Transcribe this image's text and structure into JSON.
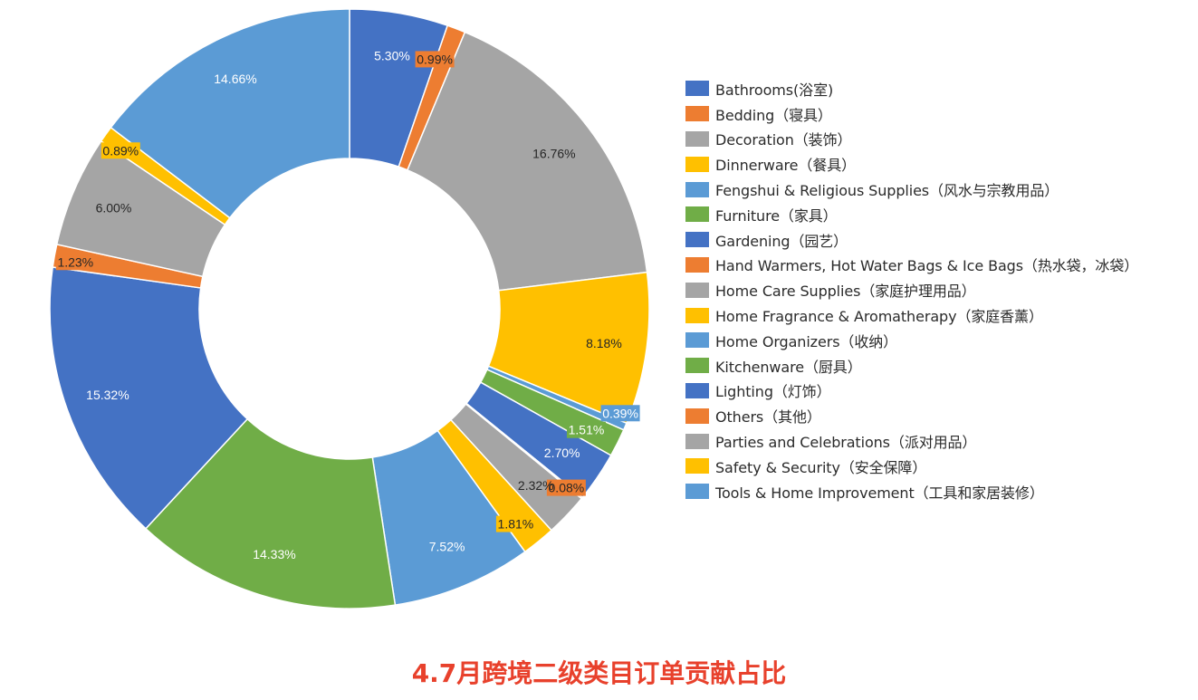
{
  "chart_data": {
    "type": "doughnut",
    "title": "4.7月跨境二级类目订单贡献占比",
    "legend_position": "right",
    "series": [
      {
        "name": "Bathrooms(浴室)",
        "value": 5.3,
        "label": "5.30%",
        "color": "#4472C4",
        "label_style": "plain"
      },
      {
        "name": "Bedding（寝具）",
        "value": 0.99,
        "label": "0.99%",
        "color": "#ED7D31",
        "label_style": "boxed"
      },
      {
        "name": "Decoration（装饰）",
        "value": 16.76,
        "label": "16.76%",
        "color": "#A5A5A5",
        "label_style": "plain"
      },
      {
        "name": "Dinnerware（餐具）",
        "value": 8.18,
        "label": "8.18%",
        "color": "#FFC000",
        "label_style": "plain"
      },
      {
        "name": "Fengshui & Religious Supplies（风水与宗教用品）",
        "value": 0.39,
        "label": "0.39%",
        "color": "#5B9BD5",
        "label_style": "boxed"
      },
      {
        "name": "Furniture（家具）",
        "value": 1.51,
        "label": "1.51%",
        "color": "#70AD47",
        "label_style": "boxed"
      },
      {
        "name": "Gardening（园艺）",
        "value": 2.7,
        "label": "2.70%",
        "color": "#4472C4",
        "label_style": "plain"
      },
      {
        "name": "Hand Warmers, Hot Water Bags & Ice Bags（热水袋，冰袋）",
        "value": 0.08,
        "label": "0.08%",
        "color": "#ED7D31",
        "label_style": "boxed"
      },
      {
        "name": "Home Care Supplies（家庭护理用品）",
        "value": 2.32,
        "label": "2.32%",
        "color": "#A5A5A5",
        "label_style": "plain"
      },
      {
        "name": "Home Fragrance & Aromatherapy（家庭香薰）",
        "value": 1.81,
        "label": "1.81%",
        "color": "#FFC000",
        "label_style": "boxed"
      },
      {
        "name": "Home Organizers（收纳）",
        "value": 7.52,
        "label": "7.52%",
        "color": "#5B9BD5",
        "label_style": "plain"
      },
      {
        "name": "Kitchenware（厨具）",
        "value": 14.33,
        "label": "14.33%",
        "color": "#70AD47",
        "label_style": "plain"
      },
      {
        "name": "Lighting（灯饰）",
        "value": 15.32,
        "label": "15.32%",
        "color": "#4472C4",
        "label_style": "plain"
      },
      {
        "name": "Others（其他）",
        "value": 1.23,
        "label": "1.23%",
        "color": "#ED7D31",
        "label_style": "boxed"
      },
      {
        "name": "Parties and Celebrations（派对用品）",
        "value": 6.0,
        "label": "6.00%",
        "color": "#A5A5A5",
        "label_style": "plain"
      },
      {
        "name": "Safety & Security（安全保障）",
        "value": 0.89,
        "label": "0.89%",
        "color": "#FFC000",
        "label_style": "boxed"
      },
      {
        "name": "Tools & Home Improvement（工具和家居装修）",
        "value": 14.66,
        "label": "14.66%",
        "color": "#5B9BD5",
        "label_style": "plain"
      }
    ]
  }
}
